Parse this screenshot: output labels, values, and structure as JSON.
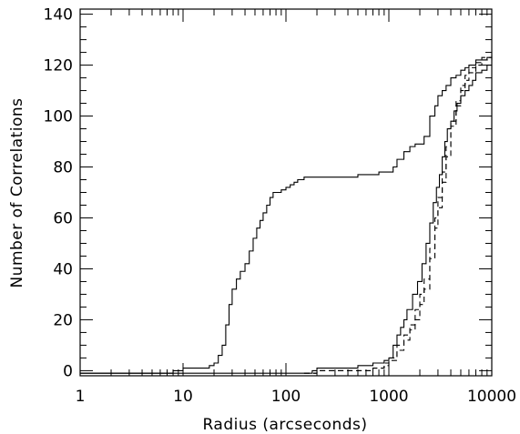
{
  "chart_data": {
    "type": "line",
    "xlabel": "Radius (arcseconds)",
    "ylabel": "Number of Correlations",
    "x_scale": "log",
    "xlim": [
      1,
      10000
    ],
    "ylim": [
      -2,
      142
    ],
    "x_ticks": [
      1,
      10,
      100,
      1000,
      10000
    ],
    "x_tick_labels": [
      "1",
      "10",
      "100",
      "1000",
      "10000"
    ],
    "y_ticks": [
      0,
      20,
      40,
      60,
      80,
      100,
      120,
      140
    ],
    "y_tick_labels": [
      "0",
      "20",
      "40",
      "60",
      "80",
      "100",
      "120",
      "140"
    ],
    "grid": false,
    "legend": "none",
    "series": [
      {
        "style": "solid",
        "x": [
          1,
          7,
          8,
          9,
          10,
          15,
          18,
          20,
          22,
          24,
          26,
          28,
          30,
          33,
          36,
          40,
          44,
          48,
          52,
          56,
          60,
          65,
          70,
          75,
          80,
          90,
          100,
          110,
          120,
          130,
          150,
          170,
          200,
          300,
          500,
          600,
          800,
          1000,
          1100,
          1200,
          1400,
          1600,
          1800,
          2000,
          2200,
          2500,
          2800,
          3000,
          3300,
          3600,
          4000,
          4500,
          5000,
          5500,
          6000,
          6500,
          7000,
          8000,
          9000,
          10000
        ],
        "y": [
          -1,
          -1,
          0,
          0,
          1,
          1,
          2,
          3,
          6,
          10,
          18,
          26,
          32,
          36,
          39,
          42,
          47,
          52,
          56,
          59,
          62,
          65,
          68,
          70,
          70,
          71,
          72,
          73,
          74,
          75,
          76,
          76,
          76,
          76,
          77,
          77,
          78,
          78,
          80,
          83,
          86,
          88,
          89,
          89,
          92,
          100,
          104,
          108,
          110,
          112,
          115,
          116,
          118,
          119,
          120,
          120,
          122,
          122,
          123,
          123
        ]
      },
      {
        "style": "solid",
        "x": [
          1,
          150,
          180,
          200,
          300,
          500,
          700,
          900,
          1000,
          1100,
          1200,
          1300,
          1400,
          1500,
          1700,
          1900,
          2100,
          2300,
          2500,
          2700,
          2900,
          3100,
          3300,
          3500,
          3700,
          4000,
          4300,
          4600,
          5000,
          5500,
          6000,
          6500,
          7000,
          8000,
          9000,
          10000
        ],
        "y": [
          -1,
          -1,
          0,
          1,
          1,
          2,
          3,
          4,
          5,
          10,
          14,
          17,
          20,
          24,
          30,
          35,
          42,
          50,
          58,
          66,
          72,
          77,
          84,
          90,
          95,
          98,
          102,
          105,
          108,
          110,
          112,
          114,
          117,
          118,
          120,
          120
        ]
      },
      {
        "style": "dashed",
        "x": [
          150,
          200,
          300,
          500,
          700,
          900,
          1000,
          1200,
          1400,
          1600,
          1800,
          2000,
          2200,
          2500,
          2800,
          3000,
          3300,
          3600,
          4000,
          4500,
          5000,
          5500,
          6000,
          7000,
          8000,
          9000,
          10000
        ],
        "y": [
          -1,
          0,
          0,
          0,
          1,
          2,
          4,
          8,
          12,
          16,
          20,
          26,
          32,
          44,
          56,
          64,
          74,
          84,
          96,
          104,
          110,
          114,
          117,
          120,
          122,
          122,
          123
        ]
      },
      {
        "style": "dashed",
        "x": [
          150,
          200,
          300,
          500,
          700,
          900,
          1000,
          1200,
          1400,
          1600,
          1800,
          2000,
          2200,
          2500,
          2800,
          3000,
          3300,
          3600,
          4000,
          4500,
          5000,
          5500,
          6000,
          7000,
          8000,
          9000,
          10000
        ],
        "y": [
          -1,
          0,
          0,
          0,
          1,
          3,
          5,
          10,
          14,
          18,
          24,
          30,
          36,
          48,
          60,
          68,
          78,
          88,
          98,
          106,
          112,
          116,
          119,
          121,
          123,
          123,
          124
        ]
      }
    ]
  }
}
